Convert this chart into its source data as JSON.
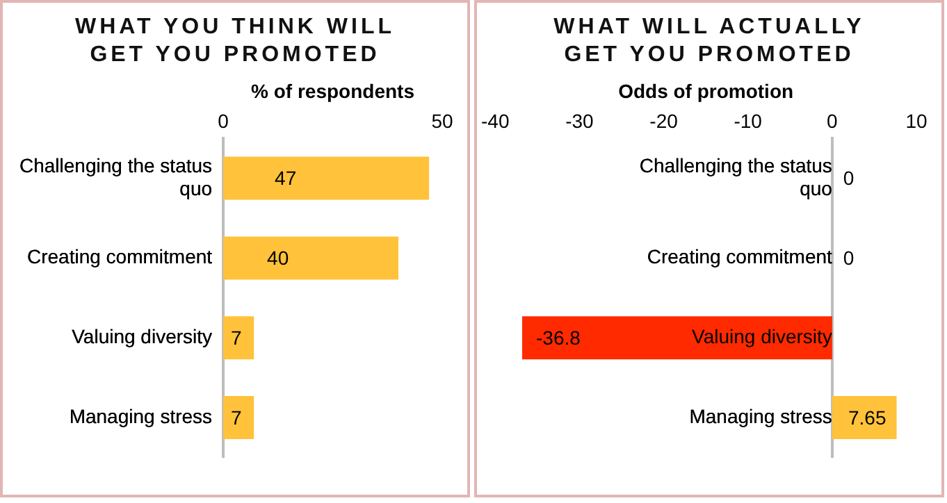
{
  "chart_data": [
    {
      "type": "bar",
      "orientation": "horizontal",
      "title": "WHAT YOU THINK WILL GET YOU PROMOTED",
      "xlabel": "% of respondents",
      "categories": [
        "Challenging the status quo",
        "Creating commitment",
        "Valuing diversity",
        "Managing stress"
      ],
      "values": [
        47,
        40,
        7,
        7
      ],
      "colors": [
        "#ffc23a",
        "#ffc23a",
        "#ffc23a",
        "#ffc23a"
      ],
      "xlim": [
        0,
        50
      ],
      "xticks": [
        0,
        50
      ],
      "data_labels": true,
      "grid": false,
      "legend": false
    },
    {
      "type": "bar",
      "orientation": "horizontal",
      "title": "WHAT WILL ACTUALLY GET YOU PROMOTED",
      "xlabel": "Odds of promotion",
      "categories": [
        "Challenging the status quo",
        "Creating commitment",
        "Valuing diversity",
        "Managing stress"
      ],
      "values": [
        0,
        0,
        -36.8,
        7.65
      ],
      "colors": [
        "#ffc23a",
        "#ffc23a",
        "#ff2a00",
        "#ffc23a"
      ],
      "xlim": [
        -40,
        10
      ],
      "xticks": [
        -40,
        -30,
        -20,
        -10,
        0,
        10
      ],
      "data_labels": true,
      "grid": false,
      "legend": false
    }
  ]
}
